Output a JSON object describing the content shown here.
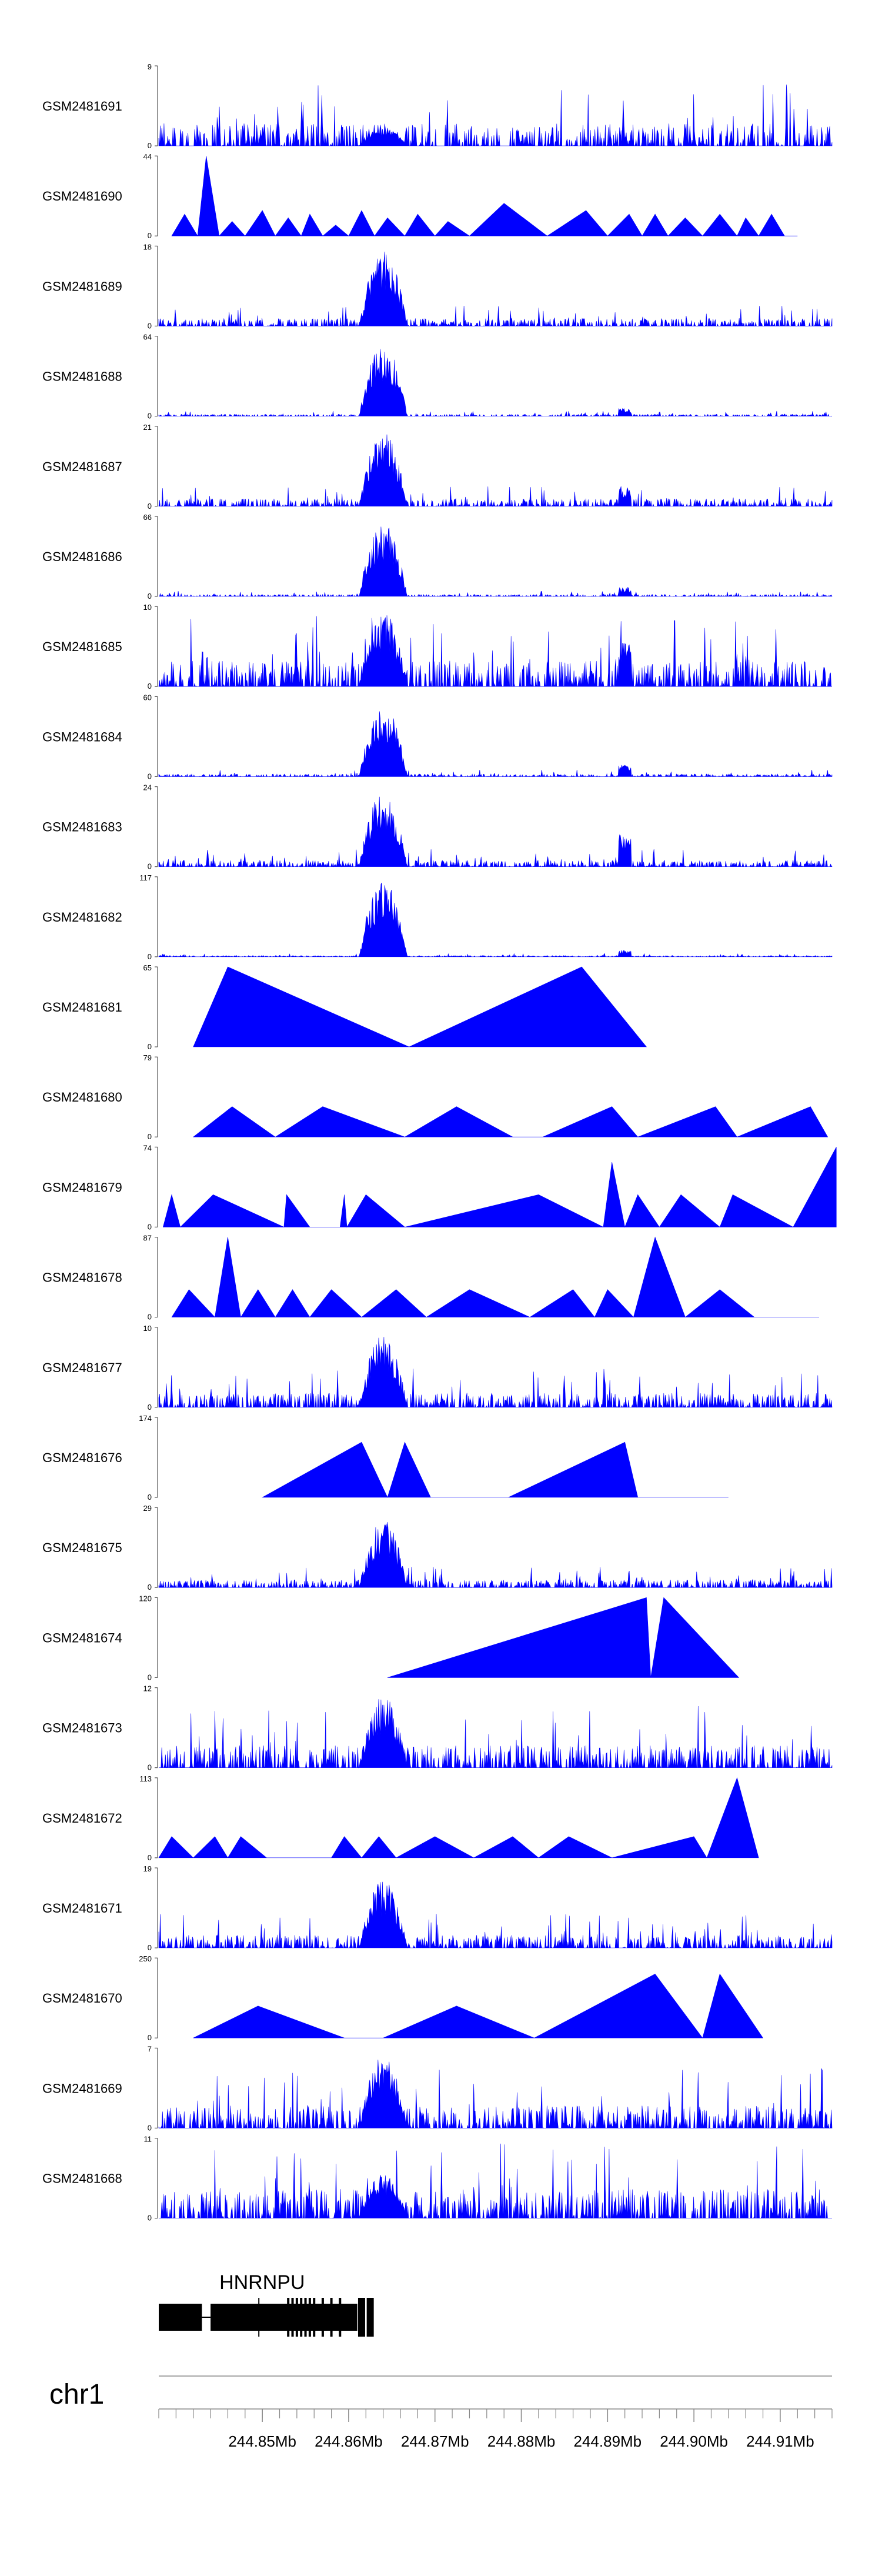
{
  "chart_data": {
    "type": "area",
    "title": "",
    "xlabel": "",
    "chromosome": "chr1",
    "gene": "HNRNPU",
    "colors": {
      "track": "#0000ff",
      "gene": "#000000",
      "text": "#000000",
      "axis": "#555555"
    },
    "xlim": [
      244.838,
      244.916
    ],
    "x_ticks": [
      {
        "value": 244.85,
        "label": "244.85Mb"
      },
      {
        "value": 244.86,
        "label": "244.86Mb"
      },
      {
        "value": 244.87,
        "label": "244.87Mb"
      },
      {
        "value": 244.88,
        "label": "244.88Mb"
      },
      {
        "value": 244.89,
        "label": "244.89Mb"
      },
      {
        "value": 244.9,
        "label": "244.90Mb"
      },
      {
        "value": 244.91,
        "label": "244.91Mb"
      }
    ],
    "minor_tick_step": 0.002,
    "peak_region": [
      244.862,
      244.866
    ],
    "secondary_peak": 244.892,
    "gene_model": {
      "start": 244.838,
      "end": 244.863,
      "first_exon": [
        244.838,
        244.843
      ],
      "intron": [
        244.843,
        244.844
      ],
      "body": [
        244.844,
        244.861
      ],
      "small_exons": [
        244.853,
        244.8535,
        244.854,
        244.8545,
        244.855,
        244.8555,
        244.856,
        244.857,
        244.858,
        244.859
      ],
      "last_exons": [
        244.8615,
        244.8625
      ]
    },
    "tracks": [
      {
        "name": "GSM2481691",
        "ymin": 0,
        "ymax": 9,
        "style": "noisy",
        "peak": 0.22,
        "noise": 0.35,
        "seed": 1
      },
      {
        "name": "GSM2481690",
        "ymin": 0,
        "ymax": 44,
        "style": "sparse",
        "x": [
          244.8395,
          244.841,
          244.8425,
          244.8435,
          244.845,
          244.8465,
          244.848,
          244.85,
          244.8515,
          244.853,
          244.8545,
          244.8555,
          244.857,
          244.8585,
          244.86,
          244.8615,
          244.863,
          244.8645,
          244.8665,
          244.868,
          244.87,
          244.8715,
          244.874,
          244.878,
          244.883,
          244.8875,
          244.89,
          244.8925,
          244.894,
          244.8955,
          244.897,
          244.899,
          244.901,
          244.903,
          244.905,
          244.906,
          244.9075,
          244.909,
          244.9105,
          244.912
        ],
        "y": [
          0,
          12,
          0,
          44,
          0,
          8,
          0,
          14,
          0,
          10,
          0,
          12,
          0,
          6,
          0,
          14,
          0,
          10,
          0,
          12,
          0,
          8,
          0,
          18,
          0,
          14,
          0,
          12,
          0,
          12,
          0,
          10,
          0,
          12,
          0,
          10,
          0,
          12,
          0,
          0
        ]
      },
      {
        "name": "GSM2481689",
        "ymin": 0,
        "ymax": 18,
        "style": "noisy",
        "peak": 0.95,
        "noise": 0.12,
        "seed": 3
      },
      {
        "name": "GSM2481688",
        "ymin": 0,
        "ymax": 64,
        "style": "noisy",
        "peak": 0.9,
        "noise": 0.03,
        "seed": 4,
        "secondary": 0.1
      },
      {
        "name": "GSM2481687",
        "ymin": 0,
        "ymax": 21,
        "style": "noisy",
        "peak": 0.95,
        "noise": 0.12,
        "seed": 5,
        "secondary": 0.25
      },
      {
        "name": "GSM2481686",
        "ymin": 0,
        "ymax": 66,
        "style": "noisy",
        "peak": 0.92,
        "noise": 0.03,
        "seed": 6,
        "secondary": 0.12
      },
      {
        "name": "GSM2481685",
        "ymin": 0,
        "ymax": 10,
        "style": "noisy",
        "peak": 0.95,
        "noise": 0.4,
        "seed": 7,
        "secondary": 0.55
      },
      {
        "name": "GSM2481684",
        "ymin": 0,
        "ymax": 60,
        "style": "noisy",
        "peak": 0.9,
        "noise": 0.04,
        "seed": 8,
        "secondary": 0.15
      },
      {
        "name": "GSM2481683",
        "ymin": 0,
        "ymax": 24,
        "style": "noisy",
        "peak": 0.95,
        "noise": 0.1,
        "seed": 9,
        "secondary": 0.4
      },
      {
        "name": "GSM2481682",
        "ymin": 0,
        "ymax": 117,
        "style": "noisy",
        "peak": 0.95,
        "noise": 0.02,
        "seed": 10,
        "secondary": 0.08
      },
      {
        "name": "GSM2481681",
        "ymin": 0,
        "ymax": 65,
        "style": "sparse",
        "x": [
          244.842,
          244.846,
          244.867,
          244.887,
          244.8945
        ],
        "y": [
          0,
          65,
          0,
          65,
          0
        ]
      },
      {
        "name": "GSM2481680",
        "ymin": 0,
        "ymax": 79,
        "style": "sparse",
        "x": [
          244.842,
          244.8465,
          244.8515,
          244.857,
          244.8665,
          244.8725,
          244.879,
          244.8825,
          244.8905,
          244.8935,
          244.9025,
          244.905,
          244.9135,
          244.9155
        ],
        "y": [
          0,
          30,
          0,
          30,
          0,
          30,
          0,
          0,
          30,
          0,
          30,
          0,
          30,
          0
        ]
      },
      {
        "name": "GSM2481679",
        "ymin": 0,
        "ymax": 74,
        "style": "sparse",
        "x": [
          244.8385,
          244.8395,
          244.8405,
          244.8443,
          244.8525,
          244.8528,
          244.8555,
          244.859,
          244.8595,
          244.8598,
          244.862,
          244.8665,
          244.882,
          244.8895,
          244.8905,
          244.892,
          244.8935,
          244.896,
          244.8985,
          244.903,
          244.9045,
          244.9115,
          244.9165
        ],
        "y": [
          0,
          30,
          0,
          30,
          0,
          30,
          0,
          0,
          30,
          0,
          30,
          0,
          30,
          0,
          60,
          0,
          30,
          0,
          30,
          0,
          30,
          0,
          74
        ]
      },
      {
        "name": "GSM2481678",
        "ymin": 0,
        "ymax": 87,
        "style": "sparse",
        "x": [
          244.8395,
          244.8415,
          244.8445,
          244.846,
          244.8475,
          244.8495,
          244.8515,
          244.8535,
          244.8555,
          244.858,
          244.8615,
          244.8655,
          244.869,
          244.874,
          244.881,
          244.886,
          244.8885,
          244.89,
          244.893,
          244.8955,
          244.899,
          244.903,
          244.907,
          244.9145
        ],
        "y": [
          0,
          30,
          0,
          87,
          0,
          30,
          0,
          30,
          0,
          30,
          0,
          30,
          0,
          30,
          0,
          30,
          0,
          30,
          0,
          87,
          0,
          30,
          0,
          0
        ]
      },
      {
        "name": "GSM2481677",
        "ymin": 0,
        "ymax": 10,
        "style": "noisy",
        "peak": 0.9,
        "noise": 0.22,
        "seed": 14
      },
      {
        "name": "GSM2481676",
        "ymin": 0,
        "ymax": 174,
        "style": "sparse",
        "x": [
          244.85,
          244.8615,
          244.8645,
          244.8665,
          244.8695,
          244.8785,
          244.892,
          244.8935,
          244.904
        ],
        "y": [
          0,
          120,
          0,
          120,
          0,
          0,
          120,
          0,
          0
        ]
      },
      {
        "name": "GSM2481675",
        "ymin": 0,
        "ymax": 29,
        "style": "noisy",
        "peak": 0.85,
        "noise": 0.12,
        "seed": 16
      },
      {
        "name": "GSM2481674",
        "ymin": 0,
        "ymax": 120,
        "style": "sparse",
        "x": [
          244.8645,
          244.8945,
          244.895,
          244.8965,
          244.9052
        ],
        "y": [
          0,
          120,
          0,
          120,
          0
        ]
      },
      {
        "name": "GSM2481673",
        "ymin": 0,
        "ymax": 12,
        "style": "noisy",
        "peak": 0.9,
        "noise": 0.35,
        "seed": 18
      },
      {
        "name": "GSM2481672",
        "ymin": 0,
        "ymax": 113,
        "style": "sparse",
        "x": [
          244.838,
          244.8395,
          244.842,
          244.8445,
          244.846,
          244.8475,
          244.8505,
          244.858,
          244.8595,
          244.8615,
          244.8635,
          244.8655,
          244.87,
          244.8745,
          244.879,
          244.882,
          244.8855,
          244.8905,
          244.9,
          244.9015,
          244.905,
          244.9075
        ],
        "y": [
          0,
          30,
          0,
          30,
          0,
          30,
          0,
          0,
          30,
          0,
          30,
          0,
          30,
          0,
          30,
          0,
          30,
          0,
          30,
          0,
          113,
          0
        ]
      },
      {
        "name": "GSM2481671",
        "ymin": 0,
        "ymax": 19,
        "style": "noisy",
        "peak": 0.85,
        "noise": 0.2,
        "seed": 20
      },
      {
        "name": "GSM2481670",
        "ymin": 0,
        "ymax": 250,
        "style": "sparse",
        "x": [
          244.842,
          244.8495,
          244.8595,
          244.864,
          244.8725,
          244.8815,
          244.8955,
          244.901,
          244.903,
          244.908
        ],
        "y": [
          0,
          100,
          0,
          0,
          100,
          0,
          200,
          0,
          200,
          0
        ]
      },
      {
        "name": "GSM2481669",
        "ymin": 0,
        "ymax": 7,
        "style": "noisy",
        "peak": 0.9,
        "noise": 0.35,
        "seed": 22
      },
      {
        "name": "GSM2481668",
        "ymin": 0,
        "ymax": 11,
        "style": "noisy",
        "peak": 0.55,
        "noise": 0.45,
        "seed": 23
      }
    ]
  }
}
